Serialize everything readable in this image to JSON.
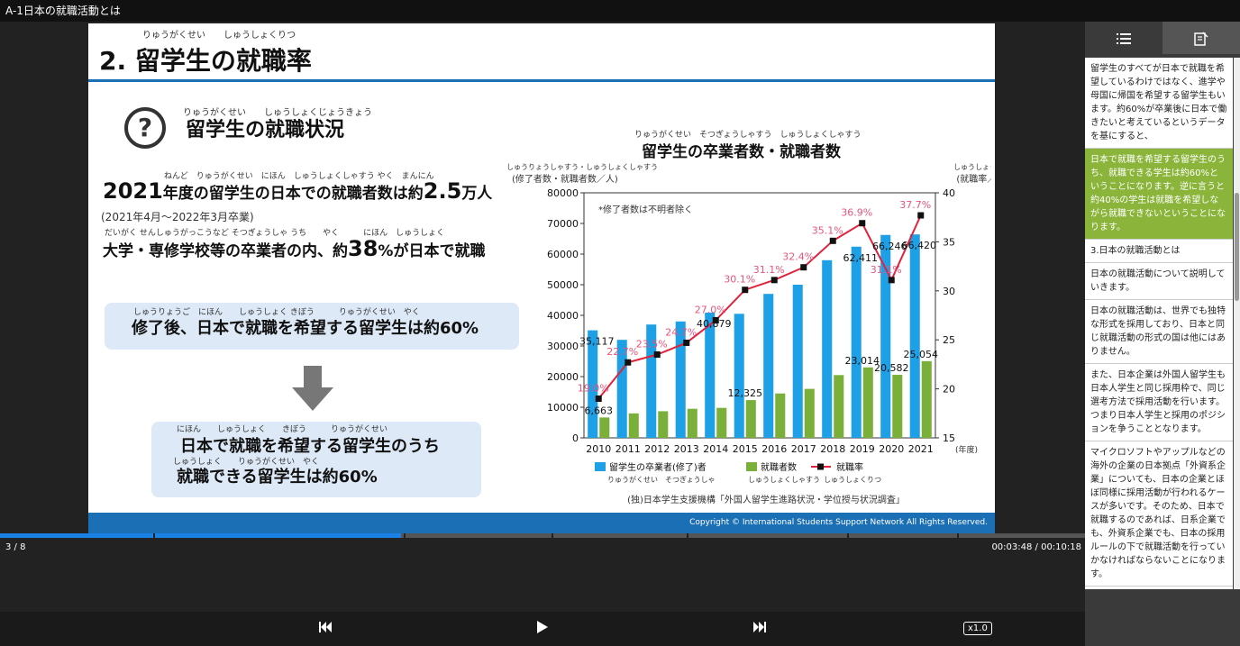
{
  "window": {
    "title": "A-1日本の就職活動とは"
  },
  "slide": {
    "number_title": "2. 留学生の就職率",
    "title_ruby": "りゅうがくせい　　しゅうしょくりつ",
    "section_title": "留学生の就職状況",
    "section_ruby": "りゅうがくせい　　しゅうしょくじょうきょう",
    "question_mark": "?",
    "line1_ruby": "ねんど　りゅうがくせい　にほん　しゅうしょくしゃすう やく　まんにん",
    "line1_a": "2021",
    "line1_b": "年度の留学生の日本での就職者数は約",
    "line1_c": "2.5",
    "line1_d": "万人",
    "note": "(2021年4月～2022年3月卒業)",
    "line2_ruby": "だいがく せんしゅうがっこうなど そつぎょうしゃ うち　　やく　　　にほん　しゅうしょく",
    "line2_a": "大学・専修学校等の卒業者の内、約",
    "line2_b": "38",
    "line2_c": "%が日本で就職",
    "box1_ruby": "しゅうりょうご　にほん　　しゅうしょく きぼう　　　りゅうがくせい　やく",
    "box1_text": "修了後、日本で就職を希望する留学生は約60%",
    "box2_ruby1": "にほん　　しゅうしょく　　きぼう　　　りゅうがくせい",
    "box2_line1": "日本で就職を希望する留学生のうち",
    "box2_ruby2": "しゅうしょく　　りゅうがくせい　やく",
    "box2_line2": "就職できる留学生は約60%",
    "chart_title": "留学生の卒業者数・就職者数",
    "chart_title_ruby": "りゅうがくせい　そつぎょうしゃすう　しゅうしょくしゃすう",
    "footer": "Copyright © International Students Support Network All Rights Reserved."
  },
  "chart_data": {
    "type": "bar",
    "title": "留学生の卒業者数・就職者数",
    "categories": [
      "2010",
      "2011",
      "2012",
      "2013",
      "2014",
      "2015",
      "2016",
      "2017",
      "2018",
      "2019",
      "2020",
      "2021"
    ],
    "series": [
      {
        "name": "留学生の卒業者(修了)者",
        "type": "bar",
        "axis": "left",
        "color": "#1ea0e6",
        "values": [
          35117,
          32000,
          37000,
          38000,
          40879,
          40500,
          47000,
          50000,
          58000,
          62411,
          66246,
          66420
        ]
      },
      {
        "name": "就職者数",
        "type": "bar",
        "axis": "left",
        "color": "#7ab03a",
        "values": [
          6663,
          8000,
          8700,
          9500,
          9800,
          12325,
          14500,
          16000,
          20500,
          23014,
          20582,
          25054
        ]
      },
      {
        "name": "就職率",
        "type": "line",
        "axis": "right",
        "color": "#e0223a",
        "values": [
          19.0,
          22.7,
          23.5,
          24.7,
          27.0,
          30.1,
          31.1,
          32.4,
          35.1,
          36.9,
          31.1,
          37.7
        ]
      }
    ],
    "value_labels_left_series1": [
      {
        "index": 0,
        "text": "35,117"
      },
      {
        "index": 4,
        "text": "40,879"
      },
      {
        "index": 9,
        "text": "62,411"
      },
      {
        "index": 10,
        "text": "66,246"
      },
      {
        "index": 11,
        "text": "66,420"
      }
    ],
    "value_labels_left_series2": [
      {
        "index": 0,
        "text": "6,663"
      },
      {
        "index": 5,
        "text": "12,325"
      },
      {
        "index": 9,
        "text": "23,014"
      },
      {
        "index": 10,
        "text": "20,582"
      },
      {
        "index": 11,
        "text": "25,054"
      }
    ],
    "rate_labels": [
      "19.0%",
      "22.7%",
      "23.5%",
      "24.7%",
      "27.0%",
      "30.1%",
      "31.1%",
      "32.4%",
      "35.1%",
      "36.9%",
      "31.1%",
      "37.7%"
    ],
    "ylim": [
      0,
      80000
    ],
    "yticks": [
      "0",
      "10000",
      "20000",
      "30000",
      "40000",
      "50000",
      "60000",
      "70000",
      "80000"
    ],
    "ylim_right": [
      15,
      40
    ],
    "yticks_right": [
      "15",
      "20",
      "25",
      "30",
      "35",
      "40"
    ],
    "ylabel": "(修了者数・就職者数／人)",
    "ylabel_ruby": "しゅうりょうしゃすう・しゅうしょくしゃすう",
    "ylabel_right": "(就職率／%)",
    "ylabel_right_ruby": "しゅうしょくりつ",
    "xlabel": "(年度)",
    "annotation": "*修了者数は不明者除く",
    "legend": [
      "留学生の卒業者(修了)者",
      "就職者数",
      "就職率"
    ],
    "legend_ruby": [
      "りゅうがくせい　そつぎょうしゃ",
      "しゅうしょくしゃすう",
      "しゅうしょくりつ"
    ],
    "source": "(独)日本学生支援機構「外国人留学生進路状況・学位授与状況調査」",
    "legend_position": "bottom"
  },
  "player": {
    "page": "3 / 8",
    "time": "00:03:48 / 00:10:18",
    "progress": 0.37,
    "speed": "x1.0",
    "prev_icon": "skip-back-icon",
    "play_icon": "play-icon",
    "next_icon": "skip-forward-icon"
  },
  "sidebar": {
    "tab_list_icon": "list-icon",
    "tab_notes_icon": "notes-icon",
    "segments": [
      {
        "text": "留学生のすべてが日本で就職を希望しているわけではなく、進学や母国に帰国を希望する留学生もいます。約60%が卒業後に日本で働きたいと考えているというデータを基にすると、",
        "active": false
      },
      {
        "text": "日本で就職を希望する留学生のうち、就職できる学生は約60%ということになります。逆に言うと約40%の学生は就職を希望しながら就職できないということになります。",
        "active": true
      },
      {
        "text": "3.日本の就職活動とは",
        "active": false
      },
      {
        "text": "日本の就職活動について説明していきます。",
        "active": false
      },
      {
        "text": "日本の就職活動は、世界でも独特な形式を採用しており、日本と同じ就職活動の形式の国は他にはありません。",
        "active": false
      },
      {
        "text": "また、日本企業は外国人留学生も日本人学生と同じ採用枠で、同じ選考方法で採用活動を行います。つまり日本人学生と採用のポジションを争うこととなります。",
        "active": false
      },
      {
        "text": "マイクロソフトやアップルなどの海外の企業の日本拠点「外資系企業」についても、日本の企業とほぼ同様に採用活動が行われるケースが多いです。そのため、日本で就職するのであれば、日系企業でも、外資系企業でも、日本の採用ルールの下で就職活動を行っていかなければならないことになります。",
        "active": false
      }
    ]
  }
}
